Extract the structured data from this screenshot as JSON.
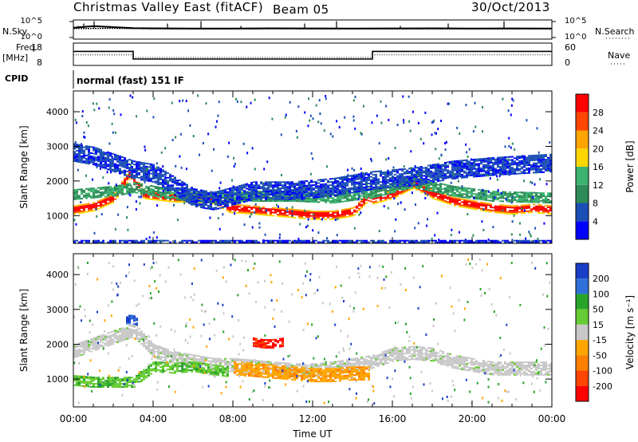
{
  "header": {
    "title": "Christmas Valley East (fitACF)",
    "beam": "Beam 05",
    "date": "30/Oct/2013"
  },
  "side_labels": {
    "nsky": "N.Sky",
    "nsearch": "N.Search",
    "freq": "Freq.",
    "freq_unit": "[MHz]",
    "nave": "Nave",
    "cpid": "CPID",
    "cpid_value": "normal (fast) 151 IF"
  },
  "colors": {
    "power": [
      "#0000ff",
      "#1c4fb5",
      "#2e8b57",
      "#3cb371",
      "#ffd700",
      "#ffa500",
      "#ff4500",
      "#ff0000"
    ],
    "velocity": [
      "#1a3fc7",
      "#2e6fd8",
      "#28a428",
      "#66cc33",
      "#c8c8c8",
      "#ffa500",
      "#ff7f00",
      "#ff4500",
      "#ff0000"
    ]
  },
  "chart_data": [
    {
      "type": "line",
      "panel": "noise",
      "ylabel_left": "N.Sky",
      "ylabel_right": "N.Search",
      "y_ticks_left": [
        "10^5",
        "10^0"
      ],
      "y_ticks_right": [
        "10^5",
        "10^0"
      ],
      "scale": "log",
      "series": [
        {
          "name": "N.Sky",
          "x": [
            0,
            1,
            2,
            3,
            4,
            6,
            8,
            10,
            12,
            14,
            16,
            18,
            20,
            22,
            24
          ],
          "values": [
            1000,
            3000,
            1500,
            800,
            700,
            600,
            600,
            700,
            650,
            600,
            650,
            700,
            600,
            650,
            600
          ]
        },
        {
          "name": "N.Search",
          "x": [
            0,
            2,
            4,
            6,
            8,
            10,
            12,
            14,
            16,
            18,
            20,
            22,
            24
          ],
          "values": [
            600,
            700,
            500,
            450,
            450,
            500,
            480,
            460,
            470,
            480,
            470,
            480,
            470
          ]
        }
      ]
    },
    {
      "type": "line",
      "panel": "frequency",
      "ylabel_left": "Freq. [MHz]",
      "ylabel_right": "Nave",
      "y_ticks_left": [
        "18",
        "8"
      ],
      "y_ticks_right": [
        "60",
        "0"
      ],
      "series": [
        {
          "name": "Freq.",
          "x": [
            0,
            3.0,
            3.0,
            15.0,
            15.0,
            24
          ],
          "values": [
            14.5,
            14.5,
            10.5,
            10.5,
            14.5,
            14.5
          ]
        },
        {
          "name": "Nave",
          "x": [
            0,
            3.0,
            3.0,
            15.0,
            15.0,
            24
          ],
          "values": [
            28,
            28,
            20,
            20,
            28,
            28
          ]
        }
      ]
    },
    {
      "type": "heatmap",
      "panel": "power",
      "ylabel": "Slant Range [km]",
      "y_ticks": [
        1000,
        2000,
        3000,
        4000
      ],
      "ylim": [
        200,
        4600
      ],
      "xlim": [
        0,
        24
      ],
      "colorbar_label": "Power [dB]",
      "colorbar_ticks": [
        "4",
        "8",
        "12",
        "16",
        "20",
        "24",
        "28"
      ],
      "bands": [
        {
          "x": [
            0,
            1,
            2,
            2.8,
            3.5,
            5,
            6,
            7,
            7.8,
            9,
            10,
            11,
            12,
            13,
            14,
            14.7,
            15,
            16,
            17,
            18,
            19,
            20,
            21,
            22,
            23,
            24
          ],
          "y": [
            1150,
            1250,
            1500,
            2200,
            1600,
            1500,
            1500,
            1450,
            1200,
            1150,
            1100,
            1050,
            1000,
            1000,
            1100,
            1500,
            1450,
            1600,
            1900,
            1600,
            1400,
            1300,
            1200,
            1150,
            1200,
            1150
          ],
          "width": 250,
          "level": 28
        },
        {
          "x": [
            0,
            2,
            3,
            5,
            7,
            9,
            11,
            13,
            15,
            17,
            19,
            21,
            24
          ],
          "y": [
            1600,
            1700,
            1800,
            1600,
            1500,
            1550,
            1550,
            1500,
            1650,
            1950,
            1700,
            1550,
            1500
          ],
          "width": 300,
          "level": 12
        },
        {
          "x": [
            0,
            1,
            2,
            3,
            4,
            6,
            7,
            9,
            11,
            13,
            15,
            17,
            19,
            21,
            24
          ],
          "y": [
            2800,
            2700,
            2500,
            2300,
            2200,
            1500,
            1400,
            1700,
            1700,
            1800,
            2000,
            2100,
            2300,
            2400,
            2500
          ],
          "width": 500,
          "level": 4
        },
        {
          "x": [
            0,
            2,
            4,
            6,
            8,
            10,
            12,
            14,
            16,
            18,
            20,
            22,
            24
          ],
          "y": [
            250,
            250,
            250,
            250,
            250,
            250,
            250,
            250,
            250,
            250,
            250,
            250,
            250
          ],
          "width": 80,
          "level": 8
        }
      ]
    },
    {
      "type": "heatmap",
      "panel": "velocity",
      "ylabel": "Slant Range [km]",
      "y_ticks": [
        1000,
        2000,
        3000,
        4000
      ],
      "ylim": [
        200,
        4600
      ],
      "xlim": [
        0,
        24
      ],
      "xlabel": "Time UT",
      "x_tick_labels": [
        "00:00",
        "04:00",
        "08:00",
        "12:00",
        "16:00",
        "20:00",
        "00:00"
      ],
      "colorbar_label": "Velocity [m s⁻¹]",
      "colorbar_ticks": [
        "200",
        "100",
        "50",
        "15",
        "-15",
        "-50",
        "-100",
        "-200"
      ],
      "bands": [
        {
          "x": [
            0,
            1,
            2,
            3,
            4,
            5,
            6,
            7,
            8,
            9,
            10,
            11,
            12,
            13,
            14,
            15,
            16,
            17,
            18,
            19,
            20,
            21,
            22,
            23,
            24
          ],
          "y": [
            1800,
            2000,
            2200,
            2400,
            1800,
            1600,
            1500,
            1400,
            1400,
            1350,
            1300,
            1250,
            1250,
            1300,
            1400,
            1500,
            1700,
            1750,
            1700,
            1500,
            1400,
            1300,
            1300,
            1300,
            1300
          ],
          "width": 400,
          "level": 0
        },
        {
          "x": [
            0,
            1,
            2,
            3,
            4,
            5,
            6,
            7,
            7.8
          ],
          "y": [
            950,
            900,
            900,
            900,
            1350,
            1300,
            1350,
            1250,
            1200
          ],
          "width": 300,
          "level": 50
        },
        {
          "x": [
            8,
            9,
            10,
            11,
            12,
            13,
            14,
            14.8
          ],
          "y": [
            1300,
            1250,
            1200,
            1150,
            1100,
            1100,
            1150,
            1150
          ],
          "width": 380,
          "level": -50
        },
        {
          "x": [
            9,
            9.5,
            10,
            10.5
          ],
          "y": [
            2050,
            2000,
            2000,
            2050
          ],
          "width": 250,
          "level": -200
        },
        {
          "x": [
            2.6,
            2.9,
            3.2
          ],
          "y": [
            2700,
            2700,
            2650
          ],
          "width": 250,
          "level": 200
        }
      ]
    }
  ]
}
